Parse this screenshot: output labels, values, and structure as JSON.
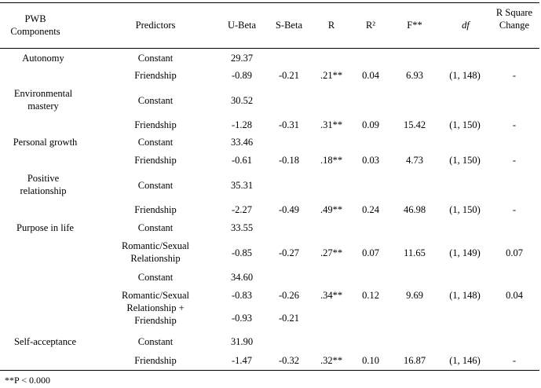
{
  "headers": {
    "pwb": "PWB Components",
    "predictors": "Predictors",
    "ubeta": "U-Beta",
    "sbeta": "S-Beta",
    "r": "R",
    "r2": "R²",
    "f": "F**",
    "df": "df",
    "rsc": "R Square Change"
  },
  "rows": [
    {
      "component": "Autonomy",
      "predictor": "Constant",
      "ubeta": "29.37",
      "sbeta": "",
      "r": "",
      "r2": "",
      "f": "",
      "df": "",
      "rsc": ""
    },
    {
      "component": "",
      "predictor": "Friendship",
      "ubeta": "-0.89",
      "sbeta": "-0.21",
      "r": ".21**",
      "r2": "0.04",
      "f": "6.93",
      "df": "(1, 148)",
      "rsc": "-"
    },
    {
      "component": "Environmental mastery",
      "predictor": "Constant",
      "ubeta": "30.52",
      "sbeta": "",
      "r": "",
      "r2": "",
      "f": "",
      "df": "",
      "rsc": ""
    },
    {
      "component": "",
      "predictor": "Friendship",
      "ubeta": "-1.28",
      "sbeta": "-0.31",
      "r": ".31**",
      "r2": "0.09",
      "f": "15.42",
      "df": "(1, 150)",
      "rsc": "-"
    },
    {
      "component": "Personal growth",
      "predictor": "Constant",
      "ubeta": "33.46",
      "sbeta": "",
      "r": "",
      "r2": "",
      "f": "",
      "df": "",
      "rsc": ""
    },
    {
      "component": "",
      "predictor": "Friendship",
      "ubeta": "-0.61",
      "sbeta": "-0.18",
      "r": ".18**",
      "r2": "0.03",
      "f": "4.73",
      "df": "(1, 150)",
      "rsc": "-"
    },
    {
      "component": "Positive relationship",
      "predictor": "Constant",
      "ubeta": "35.31",
      "sbeta": "",
      "r": "",
      "r2": "",
      "f": "",
      "df": "",
      "rsc": ""
    },
    {
      "component": "",
      "predictor": "Friendship",
      "ubeta": "-2.27",
      "sbeta": "-0.49",
      "r": ".49**",
      "r2": "0.24",
      "f": "46.98",
      "df": "(1, 150)",
      "rsc": "-"
    },
    {
      "component": "Purpose in life",
      "predictor": "Constant",
      "ubeta": "33.55",
      "sbeta": "",
      "r": "",
      "r2": "",
      "f": "",
      "df": "",
      "rsc": ""
    },
    {
      "component": "",
      "predictor": "Romantic/Sexual Relationship",
      "ubeta": "-0.85",
      "sbeta": "-0.27",
      "r": ".27**",
      "r2": "0.07",
      "f": "11.65",
      "df": "(1, 149)",
      "rsc": "0.07"
    },
    {
      "component": "",
      "predictor": "Constant",
      "ubeta": "34.60",
      "sbeta": "",
      "r": "",
      "r2": "",
      "f": "",
      "df": "",
      "rsc": ""
    },
    {
      "component": "",
      "predictor": "Romantic/Sexual Relationship + Friendship",
      "ubeta": "-0.83",
      "ubeta2": "-0.93",
      "sbeta": "-0.26",
      "sbeta2": "-0.21",
      "r": ".34**",
      "r2": "0.12",
      "f": "9.69",
      "df": "(1, 148)",
      "rsc": "0.04"
    },
    {
      "component": "Self-acceptance",
      "predictor": "Constant",
      "ubeta": "31.90",
      "sbeta": "",
      "r": "",
      "r2": "",
      "f": "",
      "df": "",
      "rsc": ""
    },
    {
      "component": "",
      "predictor": "Friendship",
      "ubeta": "-1.47",
      "sbeta": "-0.32",
      "r": ".32**",
      "r2": "0.10",
      "f": "16.87",
      "df": "(1, 146)",
      "rsc": "-"
    }
  ],
  "footnote": "**P < 0.000"
}
